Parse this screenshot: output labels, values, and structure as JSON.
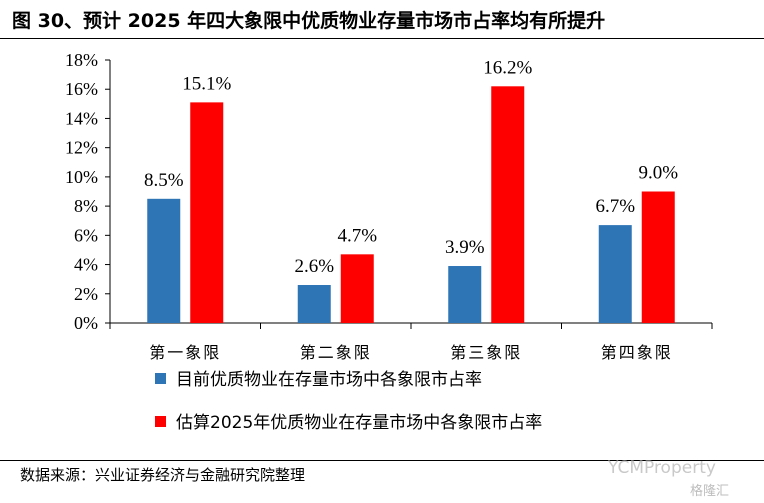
{
  "title": "图 30、预计 2025 年四大象限中优质物业存量市场市占率均有所提升",
  "source": "数据来源：兴业证券经济与金融研究院整理",
  "watermark": {
    "brand": "YCMProperty",
    "sub": "格隆汇"
  },
  "colors": {
    "current": "#2E75B6",
    "estimate": "#FF0000",
    "axis": "#000000"
  },
  "chart_data": {
    "type": "bar",
    "categories": [
      "第一象限",
      "第二象限",
      "第三象限",
      "第四象限"
    ],
    "series": [
      {
        "name": "目前优质物业在存量市场中各象限市占率",
        "values": [
          8.5,
          2.6,
          3.9,
          6.7
        ],
        "labels": [
          "8.5%",
          "2.6%",
          "3.9%",
          "6.7%"
        ]
      },
      {
        "name": "估算2025年优质物业在存量市场中各象限市占率",
        "values": [
          15.1,
          4.7,
          16.2,
          9.0
        ],
        "labels": [
          "15.1%",
          "4.7%",
          "16.2%",
          "9.0%"
        ]
      }
    ],
    "ylim": [
      0,
      18
    ],
    "yticks": [
      "0%",
      "2%",
      "4%",
      "6%",
      "8%",
      "10%",
      "12%",
      "14%",
      "16%",
      "18%"
    ],
    "grid": false,
    "legend": "bottom"
  }
}
